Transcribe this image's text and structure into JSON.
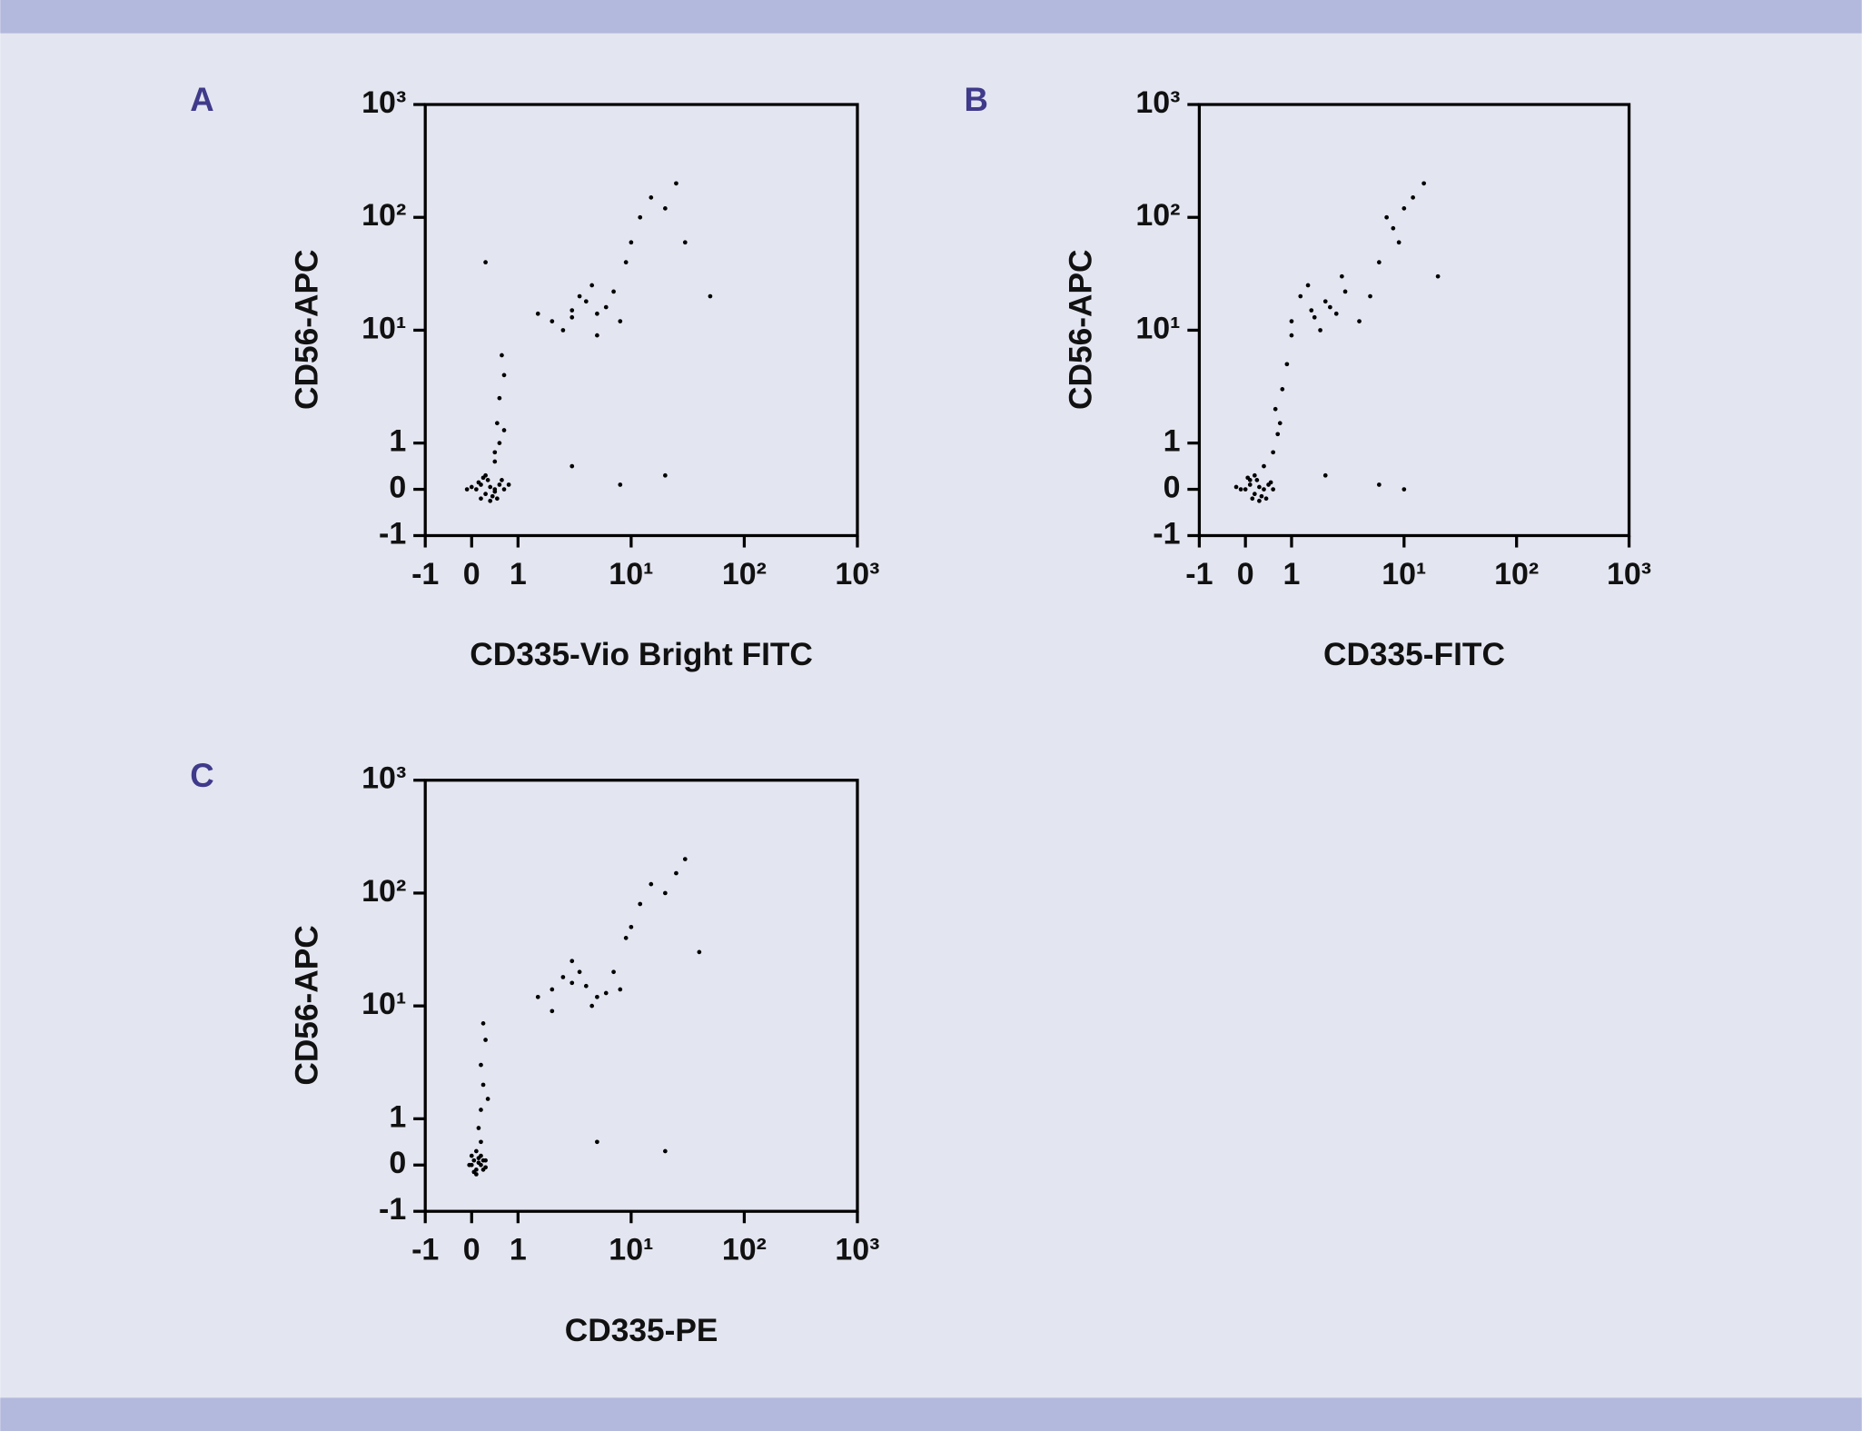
{
  "chart_data": [
    {
      "type": "scatter",
      "panel_label": "A",
      "xlabel": "CD335-Vio Bright FITC",
      "ylabel": "CD56-APC",
      "scale": "biexponential",
      "color": "#000000",
      "xlim": [
        -1,
        1000
      ],
      "ylim": [
        -1,
        1000
      ],
      "xticks": [
        -1,
        0,
        1,
        {
          "value": 10,
          "label": "10¹"
        },
        {
          "value": 100,
          "label": "10²"
        },
        {
          "value": 1000,
          "label": "10³"
        }
      ],
      "yticks": [
        -1,
        0,
        1,
        {
          "value": 10,
          "label": "10¹"
        },
        {
          "value": 100,
          "label": "10²"
        },
        {
          "value": 1000,
          "label": "10³"
        }
      ],
      "x": [
        0.1,
        0.2,
        0.3,
        0.4,
        0.5,
        0.6,
        0.2,
        0.35,
        0.45,
        0.7,
        0.0,
        -0.1,
        0.25,
        0.55,
        0.8,
        0.15,
        0.4,
        0.65,
        0.3,
        0.5,
        0.5,
        0.6,
        0.55,
        0.6,
        0.7,
        0.65,
        0.5,
        0.7,
        2,
        3,
        4,
        5,
        3.5,
        2.5,
        6,
        4.5,
        3,
        8,
        1.5,
        5,
        7,
        10,
        12,
        15,
        20,
        25,
        9,
        30,
        8,
        20,
        3,
        50,
        0.3
      ],
      "y": [
        0.0,
        0.1,
        -0.1,
        0.05,
        0.0,
        0.1,
        -0.2,
        0.2,
        -0.15,
        0.0,
        0.05,
        0.0,
        0.25,
        -0.2,
        0.1,
        0.15,
        -0.25,
        0.2,
        0.3,
        -0.05,
        0.6,
        1,
        1.5,
        2.5,
        4,
        6,
        0.8,
        1.3,
        12,
        15,
        18,
        14,
        20,
        10,
        16,
        25,
        13,
        12,
        14,
        9,
        22,
        60,
        100,
        150,
        120,
        200,
        40,
        60,
        0.1,
        0.3,
        0.5,
        20,
        40
      ]
    },
    {
      "type": "scatter",
      "panel_label": "B",
      "xlabel": "CD335-FITC",
      "ylabel": "CD56-APC",
      "scale": "biexponential",
      "color": "#000000",
      "xlim": [
        -1,
        1000
      ],
      "ylim": [
        -1,
        1000
      ],
      "xticks": [
        -1,
        0,
        1,
        {
          "value": 10,
          "label": "10¹"
        },
        {
          "value": 100,
          "label": "10²"
        },
        {
          "value": 1000,
          "label": "10³"
        }
      ],
      "yticks": [
        -1,
        0,
        1,
        {
          "value": 10,
          "label": "10¹"
        },
        {
          "value": 100,
          "label": "10²"
        },
        {
          "value": 1000,
          "label": "10³"
        }
      ],
      "x": [
        0.0,
        0.1,
        0.2,
        0.3,
        0.4,
        0.5,
        -0.1,
        0.15,
        0.25,
        0.35,
        0.6,
        -0.2,
        0.05,
        0.45,
        0.55,
        0.1,
        0.3,
        0.2,
        0.4,
        0.6,
        0.7,
        0.65,
        0.8,
        0.9,
        0.75,
        1,
        1.5,
        2,
        1.2,
        2.5,
        1.8,
        3,
        1.4,
        2.2,
        1,
        4,
        2.8,
        1.6,
        5,
        6,
        8,
        10,
        12,
        9,
        15,
        7,
        2,
        6,
        10,
        20
      ],
      "y": [
        0.0,
        0.1,
        -0.1,
        0.05,
        0.0,
        0.1,
        0.0,
        -0.2,
        0.2,
        -0.15,
        0.0,
        0.05,
        0.25,
        -0.2,
        0.15,
        0.2,
        -0.25,
        0.3,
        0.5,
        0.8,
        1.2,
        2,
        3,
        5,
        1.5,
        12,
        15,
        18,
        20,
        14,
        10,
        22,
        25,
        16,
        9,
        12,
        30,
        13,
        20,
        40,
        80,
        120,
        150,
        60,
        200,
        100,
        0.3,
        0.1,
        0.0,
        30
      ]
    },
    {
      "type": "scatter",
      "panel_label": "C",
      "xlabel": "CD335-PE",
      "ylabel": "CD56-APC",
      "scale": "biexponential",
      "color": "#000000",
      "xlim": [
        -1,
        1000
      ],
      "ylim": [
        -1,
        1000
      ],
      "xticks": [
        -1,
        0,
        1,
        {
          "value": 10,
          "label": "10¹"
        },
        {
          "value": 100,
          "label": "10²"
        },
        {
          "value": 1000,
          "label": "10³"
        }
      ],
      "yticks": [
        -1,
        0,
        1,
        {
          "value": 10,
          "label": "10¹"
        },
        {
          "value": 100,
          "label": "10²"
        },
        {
          "value": 1000,
          "label": "10³"
        }
      ],
      "x": [
        0.0,
        0.05,
        0.1,
        0.15,
        0.2,
        0.25,
        0.3,
        -0.05,
        0.0,
        0.1,
        0.2,
        0.3,
        0.05,
        0.15,
        0.25,
        0.1,
        0.2,
        0.15,
        0.2,
        0.25,
        0.2,
        0.3,
        0.25,
        0.35,
        2,
        3,
        4,
        5,
        2.5,
        3.5,
        6,
        1.5,
        4.5,
        8,
        2,
        3,
        7,
        10,
        12,
        15,
        20,
        25,
        30,
        9,
        5,
        20,
        40
      ],
      "y": [
        0.0,
        0.1,
        -0.1,
        0.05,
        0.0,
        0.1,
        -0.05,
        0.0,
        0.2,
        -0.2,
        0.2,
        0.1,
        -0.15,
        0.15,
        -0.1,
        0.3,
        0.5,
        0.8,
        1.2,
        2,
        3,
        5,
        7,
        1.5,
        14,
        16,
        15,
        12,
        18,
        20,
        13,
        12,
        10,
        14,
        9,
        25,
        20,
        50,
        80,
        120,
        100,
        150,
        200,
        40,
        0.5,
        0.3,
        30
      ]
    }
  ]
}
